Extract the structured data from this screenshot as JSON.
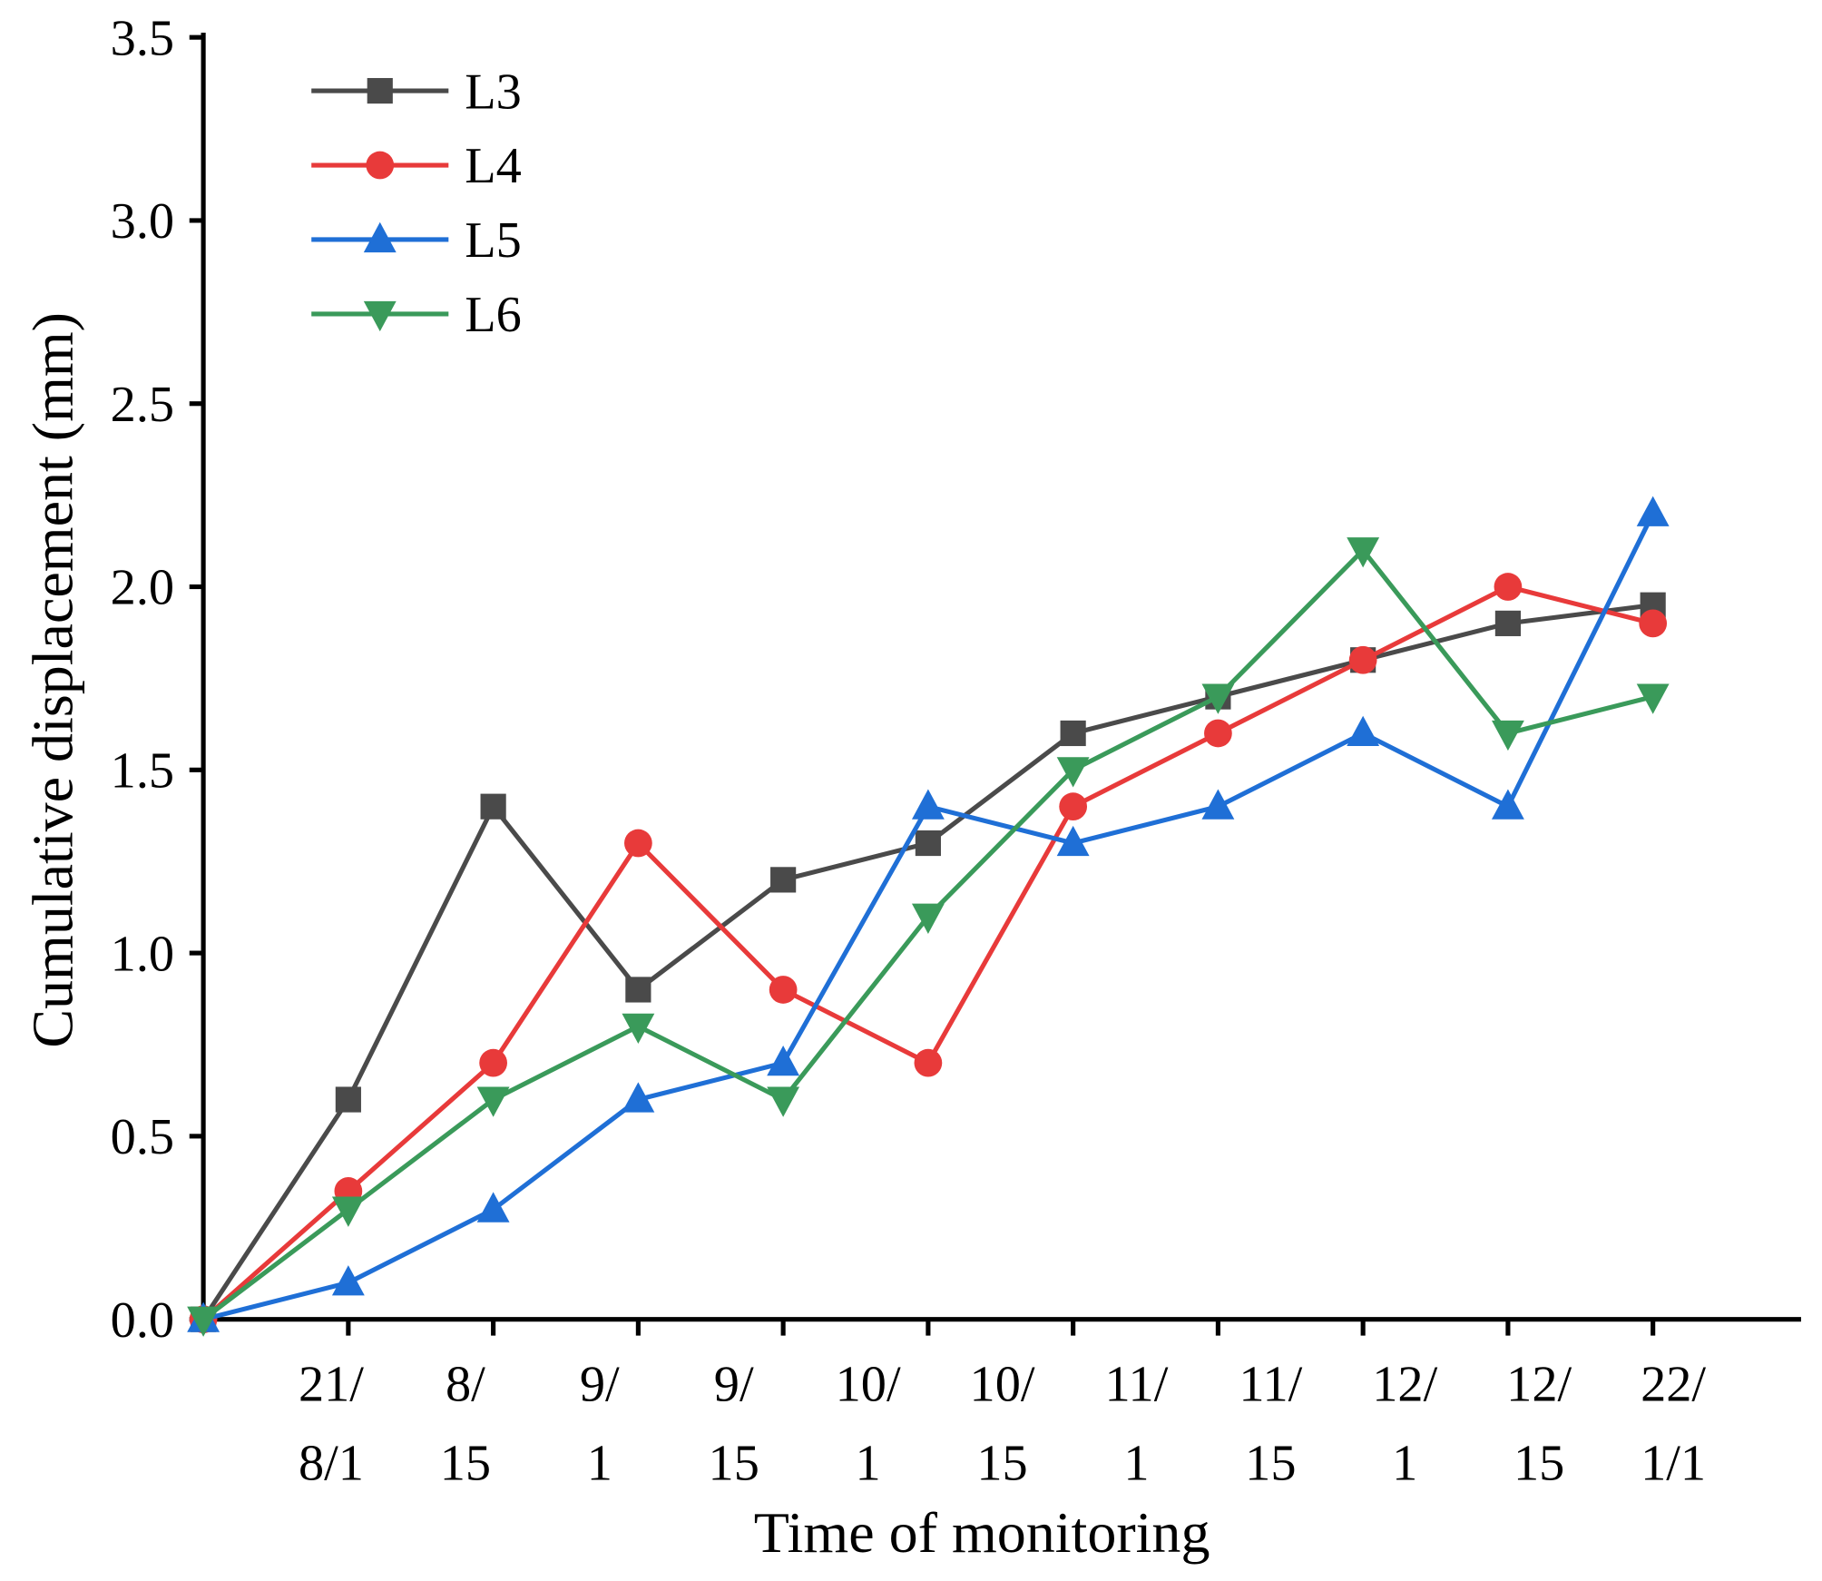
{
  "chart_data": {
    "type": "line",
    "x_label": "Time of monitoring",
    "y_label": "Cumulative displacement (mm)",
    "categories": [
      "21/8/1",
      "8/15",
      "9/1",
      "9/15",
      "10/1",
      "10/15",
      "11/1",
      "11/15",
      "12/1",
      "12/15",
      "22/1/1"
    ],
    "series": [
      {
        "name": "L3",
        "color": "#4a4a4a",
        "marker": "square",
        "values": [
          0,
          0.6,
          1.4,
          0.9,
          1.2,
          1.3,
          1.6,
          1.7,
          1.8,
          1.9,
          1.95
        ]
      },
      {
        "name": "L4",
        "color": "#e83a3a",
        "marker": "circle",
        "values": [
          0,
          0.35,
          0.7,
          1.3,
          0.9,
          0.7,
          1.4,
          1.6,
          1.8,
          2.0,
          1.9
        ]
      },
      {
        "name": "L5",
        "color": "#1f6fd6",
        "marker": "triangle-up",
        "values": [
          0,
          0.1,
          0.3,
          0.6,
          0.7,
          1.4,
          1.3,
          1.4,
          1.6,
          1.4,
          2.2
        ]
      },
      {
        "name": "L6",
        "color": "#3a9a5a",
        "marker": "triangle-down",
        "values": [
          0,
          0.3,
          0.6,
          0.8,
          0.6,
          1.1,
          1.5,
          1.7,
          2.1,
          1.6,
          1.7
        ]
      }
    ],
    "ylim": [
      0,
      3.5
    ],
    "yticks": [
      {
        "value": 0,
        "label": "0.0"
      },
      0.5,
      {
        "value": 1,
        "label": "1.0"
      },
      1.5,
      {
        "value": 2,
        "label": "2.0"
      },
      2.5,
      {
        "value": 3,
        "label": "3.0"
      },
      3.5
    ],
    "grid": false,
    "legend": "upper left"
  }
}
